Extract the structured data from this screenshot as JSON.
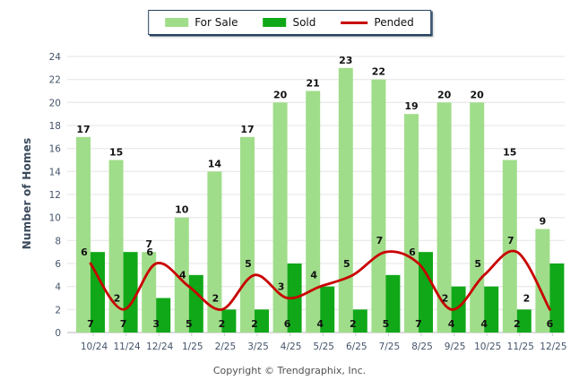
{
  "legend": {
    "items": [
      {
        "label": "For Sale",
        "color": "#A0DD8A",
        "type": "bar"
      },
      {
        "label": "Sold",
        "color": "#10A818",
        "type": "bar"
      },
      {
        "label": "Pended",
        "color": "#C80000",
        "type": "line"
      }
    ]
  },
  "footer": "Copyright © Trendgraphix, Inc.",
  "chart_data": {
    "type": "bar",
    "title": "",
    "xlabel": "",
    "ylabel": "Number of Homes",
    "ylim": [
      0,
      24
    ],
    "ytick_step": 2,
    "grid": true,
    "legend_position": "top-center",
    "categories": [
      "10/24",
      "11/24",
      "12/24",
      "1/25",
      "2/25",
      "3/25",
      "4/25",
      "5/25",
      "6/25",
      "7/25",
      "8/25",
      "9/25",
      "10/25",
      "11/25",
      "12/25"
    ],
    "series": [
      {
        "name": "For Sale",
        "type": "bar",
        "color": "#A0DD8A",
        "values": [
          17,
          15,
          7,
          10,
          14,
          17,
          20,
          21,
          23,
          22,
          19,
          20,
          20,
          15,
          9
        ]
      },
      {
        "name": "Sold",
        "type": "bar",
        "color": "#10A818",
        "values": [
          7,
          7,
          3,
          5,
          2,
          2,
          6,
          4,
          2,
          5,
          7,
          4,
          4,
          2,
          6
        ]
      },
      {
        "name": "Pended",
        "type": "line",
        "color": "#C80000",
        "values": [
          6,
          2,
          6,
          4,
          2,
          5,
          3,
          4,
          5,
          7,
          6,
          2,
          5,
          7,
          2
        ]
      }
    ]
  }
}
